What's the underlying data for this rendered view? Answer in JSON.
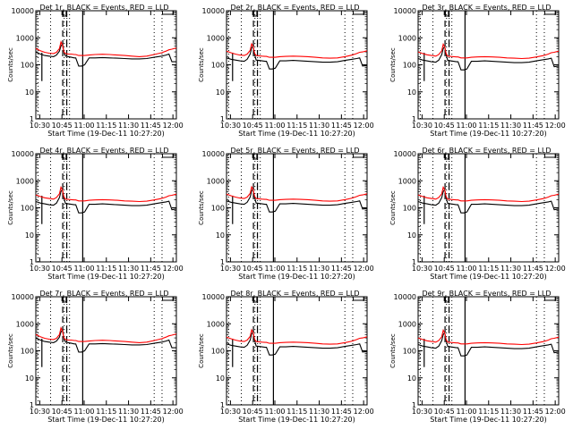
{
  "x_ticks": [
    "10:30",
    "10:45",
    "11:00",
    "11:15",
    "11:30",
    "11:45",
    "12:00"
  ],
  "y_ticks": [
    "1",
    "10",
    "100",
    "1000",
    "10000"
  ],
  "ylabel": "Counts/sec",
  "xlabel": "Start Time (19-Dec-11 10:27:20)",
  "colors": {
    "events": "#000000",
    "lld": "#ff0000"
  },
  "chart_data": [
    {
      "type": "line",
      "title": "Det 1r, BLACK = Events, RED = LLD",
      "xlabel": "Start Time (19-Dec-11 10:27:20)",
      "ylabel": "Counts/sec",
      "xlim_min": [
        0,
        95
      ],
      "ylim": [
        1,
        10000
      ],
      "yscale": "log",
      "grid": false,
      "x": [
        0,
        3,
        6,
        9,
        12,
        14,
        16,
        17,
        18,
        19,
        20,
        22,
        24,
        26,
        27,
        29,
        31,
        33,
        36,
        40,
        45,
        50,
        55,
        60,
        65,
        70,
        75,
        80,
        85,
        88,
        90,
        92,
        95
      ],
      "series": [
        {
          "name": "Events",
          "values": [
            300,
            250,
            220,
            210,
            200,
            230,
            320,
            500,
            600,
            300,
            210,
            200,
            190,
            180,
            180,
            90,
            90,
            100,
            180,
            180,
            185,
            180,
            175,
            170,
            165,
            165,
            170,
            190,
            210,
            230,
            250,
            130,
            130
          ]
        },
        {
          "name": "LLD",
          "values": [
            400,
            330,
            290,
            270,
            260,
            290,
            400,
            700,
            550,
            300,
            260,
            250,
            250,
            240,
            240,
            220,
            220,
            220,
            230,
            240,
            245,
            240,
            230,
            220,
            210,
            200,
            210,
            240,
            280,
            320,
            360,
            380,
            420
          ]
        }
      ]
    },
    {
      "type": "line",
      "title": "Det 2r, BLACK = Events, RED = LLD",
      "xlabel": "Start Time (19-Dec-11 10:27:20)",
      "ylabel": "Counts/sec",
      "xlim_min": [
        0,
        95
      ],
      "ylim": [
        1,
        10000
      ],
      "yscale": "log",
      "grid": false,
      "x": [
        0,
        3,
        6,
        9,
        12,
        14,
        16,
        17,
        18,
        19,
        20,
        22,
        24,
        26,
        27,
        29,
        31,
        33,
        36,
        40,
        45,
        50,
        55,
        60,
        65,
        70,
        75,
        80,
        85,
        88,
        90,
        92,
        95
      ],
      "series": [
        {
          "name": "Events",
          "values": [
            180,
            160,
            150,
            140,
            135,
            160,
            250,
            420,
            500,
            240,
            150,
            145,
            140,
            135,
            135,
            70,
            70,
            75,
            140,
            140,
            145,
            140,
            135,
            130,
            125,
            125,
            130,
            145,
            160,
            170,
            180,
            90,
            95
          ]
        },
        {
          "name": "LLD",
          "values": [
            320,
            280,
            250,
            230,
            220,
            250,
            340,
            600,
            480,
            260,
            220,
            215,
            210,
            205,
            205,
            190,
            190,
            190,
            200,
            205,
            210,
            205,
            200,
            190,
            180,
            175,
            180,
            200,
            230,
            260,
            290,
            300,
            330
          ]
        }
      ]
    },
    {
      "type": "line",
      "title": "Det 3r, BLACK = Events, RED = LLD",
      "xlabel": "Start Time (19-Dec-11 10:27:20)",
      "ylabel": "Counts/sec",
      "xlim_min": [
        0,
        95
      ],
      "ylim": [
        1,
        10000
      ],
      "yscale": "log",
      "grid": false,
      "x": [
        0,
        3,
        6,
        9,
        12,
        14,
        16,
        17,
        18,
        19,
        20,
        22,
        24,
        26,
        27,
        29,
        31,
        33,
        36,
        40,
        45,
        50,
        55,
        60,
        65,
        70,
        75,
        80,
        85,
        88,
        90,
        92,
        95
      ],
      "series": [
        {
          "name": "Events",
          "values": [
            170,
            150,
            140,
            130,
            125,
            150,
            240,
            400,
            480,
            230,
            145,
            140,
            135,
            130,
            130,
            65,
            65,
            70,
            135,
            135,
            140,
            135,
            130,
            125,
            120,
            120,
            125,
            140,
            155,
            165,
            175,
            85,
            90
          ]
        },
        {
          "name": "LLD",
          "values": [
            300,
            260,
            235,
            220,
            210,
            240,
            330,
            580,
            460,
            250,
            210,
            205,
            200,
            195,
            195,
            180,
            180,
            180,
            190,
            195,
            200,
            195,
            190,
            180,
            175,
            170,
            175,
            195,
            220,
            250,
            280,
            290,
            320
          ]
        }
      ]
    },
    {
      "type": "line",
      "title": "Det 4r, BLACK = Events, RED = LLD",
      "xlabel": "Start Time (19-Dec-11 10:27:20)",
      "ylabel": "Counts/sec",
      "xlim_min": [
        0,
        95
      ],
      "ylim": [
        1,
        10000
      ],
      "yscale": "log",
      "grid": false,
      "x": [
        0,
        3,
        6,
        9,
        12,
        14,
        16,
        17,
        18,
        19,
        20,
        22,
        24,
        26,
        27,
        29,
        31,
        33,
        36,
        40,
        45,
        50,
        55,
        60,
        65,
        70,
        75,
        80,
        85,
        88,
        90,
        92,
        95
      ],
      "series": [
        {
          "name": "Events",
          "values": [
            170,
            150,
            140,
            130,
            125,
            150,
            240,
            400,
            480,
            230,
            145,
            140,
            135,
            130,
            130,
            65,
            65,
            70,
            135,
            135,
            140,
            135,
            130,
            125,
            120,
            120,
            125,
            140,
            155,
            165,
            175,
            85,
            90
          ]
        },
        {
          "name": "LLD",
          "values": [
            300,
            260,
            235,
            220,
            210,
            240,
            330,
            580,
            460,
            250,
            210,
            205,
            200,
            195,
            195,
            180,
            180,
            180,
            190,
            195,
            200,
            195,
            190,
            180,
            175,
            170,
            175,
            195,
            220,
            250,
            280,
            290,
            320
          ]
        }
      ]
    },
    {
      "type": "line",
      "title": "Det 5r, BLACK = Events, RED = LLD",
      "xlabel": "Start Time (19-Dec-11 10:27:20)",
      "ylabel": "Counts/sec",
      "xlim_min": [
        0,
        95
      ],
      "ylim": [
        1,
        10000
      ],
      "yscale": "log",
      "grid": false,
      "x": [
        0,
        3,
        6,
        9,
        12,
        14,
        16,
        17,
        18,
        19,
        20,
        22,
        24,
        26,
        27,
        29,
        31,
        33,
        36,
        40,
        45,
        50,
        55,
        60,
        65,
        70,
        75,
        80,
        85,
        88,
        90,
        92,
        95
      ],
      "series": [
        {
          "name": "Events",
          "values": [
            180,
            160,
            150,
            140,
            135,
            160,
            250,
            420,
            500,
            240,
            150,
            145,
            140,
            135,
            135,
            70,
            70,
            75,
            140,
            140,
            145,
            140,
            135,
            130,
            125,
            125,
            130,
            145,
            160,
            170,
            180,
            90,
            95
          ]
        },
        {
          "name": "LLD",
          "values": [
            320,
            280,
            250,
            230,
            220,
            250,
            340,
            600,
            480,
            260,
            220,
            215,
            210,
            205,
            205,
            190,
            190,
            190,
            200,
            205,
            210,
            205,
            200,
            190,
            180,
            175,
            180,
            200,
            230,
            260,
            290,
            300,
            330
          ]
        }
      ]
    },
    {
      "type": "line",
      "title": "Det 6r, BLACK = Events, RED = LLD",
      "xlabel": "Start Time (19-Dec-11 10:27:20)",
      "ylabel": "Counts/sec",
      "xlim_min": [
        0,
        95
      ],
      "ylim": [
        1,
        10000
      ],
      "yscale": "log",
      "grid": false,
      "x": [
        0,
        3,
        6,
        9,
        12,
        14,
        16,
        17,
        18,
        19,
        20,
        22,
        24,
        26,
        27,
        29,
        31,
        33,
        36,
        40,
        45,
        50,
        55,
        60,
        65,
        70,
        75,
        80,
        85,
        88,
        90,
        92,
        95
      ],
      "series": [
        {
          "name": "Events",
          "values": [
            170,
            150,
            140,
            130,
            125,
            150,
            240,
            400,
            480,
            230,
            145,
            140,
            135,
            130,
            130,
            65,
            65,
            70,
            135,
            135,
            140,
            135,
            130,
            125,
            120,
            120,
            125,
            140,
            155,
            165,
            175,
            85,
            90
          ]
        },
        {
          "name": "LLD",
          "values": [
            300,
            260,
            235,
            220,
            210,
            240,
            330,
            580,
            460,
            250,
            210,
            205,
            200,
            195,
            195,
            180,
            180,
            180,
            190,
            195,
            200,
            195,
            190,
            180,
            175,
            170,
            175,
            195,
            220,
            250,
            280,
            290,
            320
          ]
        }
      ]
    },
    {
      "type": "line",
      "title": "Det 7r, BLACK = Events, RED = LLD",
      "xlabel": "Start Time (19-Dec-11 10:27:20)",
      "ylabel": "Counts/sec",
      "xlim_min": [
        0,
        95
      ],
      "ylim": [
        1,
        10000
      ],
      "yscale": "log",
      "grid": false,
      "x": [
        0,
        3,
        6,
        9,
        12,
        14,
        16,
        17,
        18,
        19,
        20,
        22,
        24,
        26,
        27,
        29,
        31,
        33,
        36,
        40,
        45,
        50,
        55,
        60,
        65,
        70,
        75,
        80,
        85,
        88,
        90,
        92,
        95
      ],
      "series": [
        {
          "name": "Events",
          "values": [
            300,
            250,
            220,
            210,
            200,
            230,
            320,
            500,
            600,
            300,
            210,
            200,
            190,
            180,
            180,
            90,
            90,
            100,
            180,
            180,
            185,
            180,
            175,
            170,
            165,
            165,
            170,
            190,
            210,
            230,
            250,
            130,
            130
          ]
        },
        {
          "name": "LLD",
          "values": [
            400,
            330,
            290,
            270,
            260,
            290,
            400,
            700,
            550,
            300,
            260,
            250,
            250,
            240,
            240,
            220,
            220,
            220,
            230,
            240,
            245,
            240,
            230,
            220,
            210,
            200,
            210,
            240,
            280,
            320,
            360,
            380,
            420
          ]
        }
      ]
    },
    {
      "type": "line",
      "title": "Det 8r, BLACK = Events, RED = LLD",
      "xlabel": "Start Time (19-Dec-11 10:27:20)",
      "ylabel": "Counts/sec",
      "xlim_min": [
        0,
        95
      ],
      "ylim": [
        1,
        10000
      ],
      "yscale": "log",
      "grid": false,
      "x": [
        0,
        3,
        6,
        9,
        12,
        14,
        16,
        17,
        18,
        19,
        20,
        22,
        24,
        26,
        27,
        29,
        31,
        33,
        36,
        40,
        45,
        50,
        55,
        60,
        65,
        70,
        75,
        80,
        85,
        88,
        90,
        92,
        95
      ],
      "series": [
        {
          "name": "Events",
          "values": [
            180,
            160,
            150,
            140,
            135,
            160,
            250,
            420,
            500,
            240,
            150,
            145,
            140,
            135,
            135,
            70,
            70,
            75,
            140,
            140,
            145,
            140,
            135,
            130,
            125,
            125,
            130,
            145,
            160,
            170,
            180,
            90,
            95
          ]
        },
        {
          "name": "LLD",
          "values": [
            320,
            280,
            250,
            230,
            220,
            250,
            340,
            600,
            480,
            260,
            220,
            215,
            210,
            205,
            205,
            190,
            190,
            190,
            200,
            205,
            210,
            205,
            200,
            190,
            180,
            175,
            180,
            200,
            230,
            260,
            290,
            300,
            330
          ]
        }
      ]
    },
    {
      "type": "line",
      "title": "Det 9r, BLACK = Events, RED = LLD",
      "xlabel": "Start Time (19-Dec-11 10:27:20)",
      "ylabel": "Counts/sec",
      "xlim_min": [
        0,
        95
      ],
      "ylim": [
        1,
        10000
      ],
      "yscale": "log",
      "grid": false,
      "x": [
        0,
        3,
        6,
        9,
        12,
        14,
        16,
        17,
        18,
        19,
        20,
        22,
        24,
        26,
        27,
        29,
        31,
        33,
        36,
        40,
        45,
        50,
        55,
        60,
        65,
        70,
        75,
        80,
        85,
        88,
        90,
        92,
        95
      ],
      "series": [
        {
          "name": "Events",
          "values": [
            170,
            150,
            140,
            130,
            125,
            150,
            240,
            400,
            480,
            230,
            145,
            140,
            135,
            130,
            130,
            65,
            65,
            70,
            135,
            135,
            140,
            135,
            130,
            125,
            120,
            120,
            125,
            140,
            155,
            165,
            175,
            85,
            90
          ]
        },
        {
          "name": "LLD",
          "values": [
            300,
            260,
            235,
            220,
            210,
            240,
            330,
            580,
            460,
            250,
            210,
            205,
            200,
            195,
            195,
            180,
            180,
            180,
            190,
            195,
            200,
            195,
            190,
            180,
            175,
            170,
            175,
            195,
            220,
            250,
            280,
            290,
            320
          ]
        }
      ]
    }
  ]
}
